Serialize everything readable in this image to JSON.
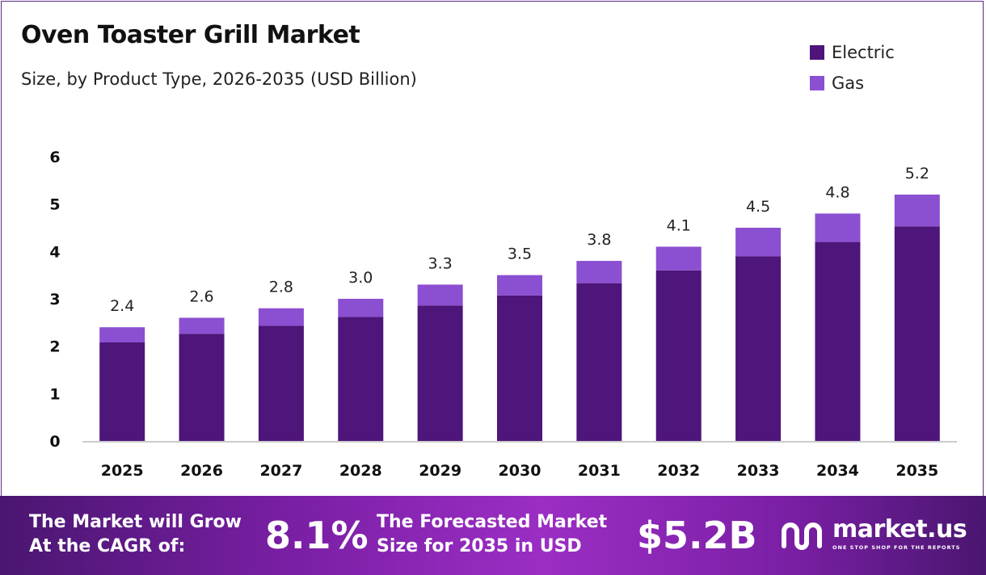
{
  "title": "Oven Toaster Grill Market",
  "subtitle": "Size, by Product Type, 2026-2035 (USD Billion)",
  "colors": {
    "electric": "#4e157a",
    "gas": "#8b4fd1",
    "axis": "#cccccc"
  },
  "chart_data": {
    "type": "bar",
    "stacked": true,
    "categories": [
      "2025",
      "2026",
      "2027",
      "2028",
      "2029",
      "2030",
      "2031",
      "2032",
      "2033",
      "2034",
      "2035"
    ],
    "series": [
      {
        "name": "Electric",
        "values": [
          2.08,
          2.26,
          2.43,
          2.62,
          2.86,
          3.07,
          3.33,
          3.6,
          3.9,
          4.2,
          4.53
        ]
      },
      {
        "name": "Gas",
        "values": [
          0.32,
          0.34,
          0.37,
          0.38,
          0.44,
          0.43,
          0.47,
          0.5,
          0.6,
          0.6,
          0.67
        ]
      }
    ],
    "totals": [
      "2.4",
      "2.6",
      "2.8",
      "3.0",
      "3.3",
      "3.5",
      "3.8",
      "4.1",
      "4.5",
      "4.8",
      "5.2"
    ],
    "ylim": [
      0,
      6
    ],
    "yticks": [
      "0",
      "1",
      "2",
      "3",
      "4",
      "5",
      "6"
    ],
    "grid": false,
    "legend_position": "top-right",
    "xlabel": "",
    "ylabel": ""
  },
  "footer": {
    "cagr_label_line1": "The Market will Grow",
    "cagr_label_line2": "At the CAGR of:",
    "cagr_value": "8.1%",
    "forecast_label_line1": "The Forecasted Market",
    "forecast_label_line2": "Size for 2035 in USD",
    "forecast_value": "$5.2B",
    "logo_name": "market.us",
    "logo_tagline": "ONE STOP SHOP FOR THE REPORTS",
    "logo_icon": "market-us-logo-icon"
  }
}
